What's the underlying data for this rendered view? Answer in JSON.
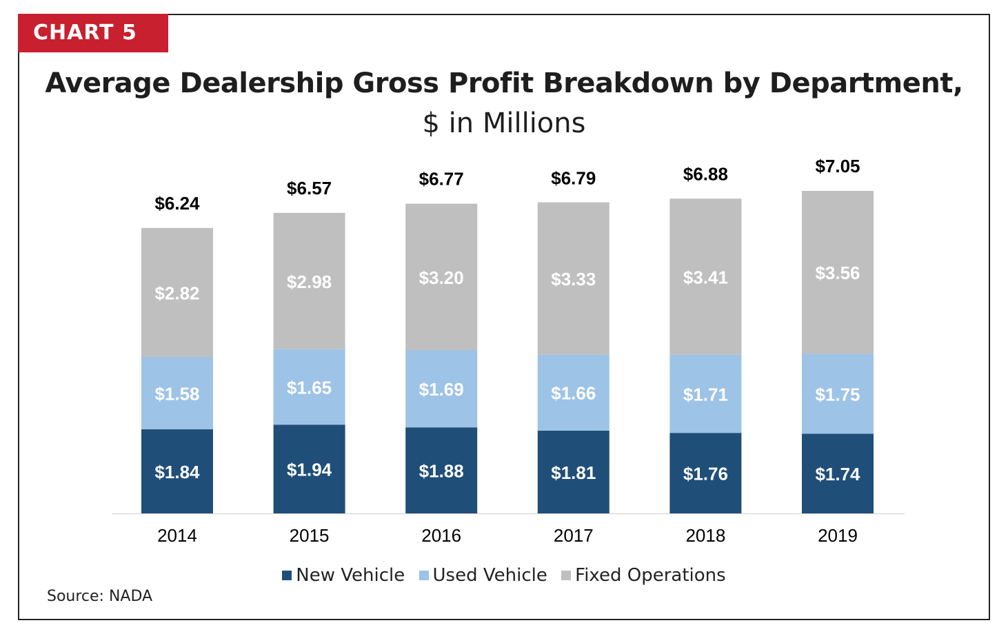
{
  "badge": "CHART 5",
  "title": "Average Dealership Gross Profit Breakdown by Department,",
  "subtitle": "$ in Millions",
  "source": "Source: NADA",
  "colors": {
    "new": "#1f4e79",
    "used": "#9dc3e6",
    "fixed": "#bfbfbf",
    "badge": "#c8202e"
  },
  "chart_data": {
    "type": "bar",
    "stacked": true,
    "categories": [
      "2014",
      "2015",
      "2016",
      "2017",
      "2018",
      "2019"
    ],
    "series": [
      {
        "name": "New Vehicle",
        "values": [
          1.84,
          1.94,
          1.88,
          1.81,
          1.76,
          1.74
        ],
        "labels": [
          "$1.84",
          "$1.94",
          "$1.88",
          "$1.81",
          "$1.76",
          "$1.74"
        ]
      },
      {
        "name": "Used Vehicle",
        "values": [
          1.58,
          1.65,
          1.69,
          1.66,
          1.71,
          1.75
        ],
        "labels": [
          "$1.58",
          "$1.65",
          "$1.69",
          "$1.66",
          "$1.71",
          "$1.75"
        ]
      },
      {
        "name": "Fixed Operations",
        "values": [
          2.82,
          2.98,
          3.2,
          3.33,
          3.41,
          3.56
        ],
        "labels": [
          "$2.82",
          "$2.98",
          "$3.20",
          "$3.33",
          "$3.41",
          "$3.56"
        ]
      }
    ],
    "totals": [
      6.24,
      6.57,
      6.77,
      6.79,
      6.88,
      7.05
    ],
    "total_labels": [
      "$6.24",
      "$6.57",
      "$6.77",
      "$6.79",
      "$6.88",
      "$7.05"
    ],
    "ylim": [
      0,
      7.05
    ],
    "grid": false,
    "legend": "bottom"
  }
}
